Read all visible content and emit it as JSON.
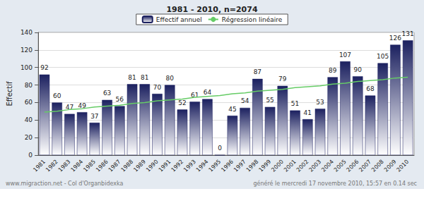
{
  "chart_data": {
    "type": "bar",
    "title": "1981 - 2010, n=2074",
    "y_label": "Effectif",
    "categories": [
      "1981",
      "1982",
      "1983",
      "1984",
      "1985",
      "1986",
      "1987",
      "1988",
      "1989",
      "1990",
      "1991",
      "1992",
      "1993",
      "1994",
      "1995",
      "1996",
      "1997",
      "1998",
      "1999",
      "2000",
      "2001",
      "2002",
      "2003",
      "2004",
      "2005",
      "2006",
      "2007",
      "2008",
      "2009",
      "2010"
    ],
    "series": [
      {
        "name": "Effectif annuel",
        "type": "bar",
        "color": "#1c2160",
        "values": [
          92,
          60,
          47,
          49,
          37,
          63,
          56,
          81,
          81,
          70,
          80,
          52,
          61,
          64,
          0,
          45,
          54,
          87,
          55,
          79,
          51,
          41,
          53,
          89,
          107,
          90,
          68,
          105,
          126,
          131
        ]
      },
      {
        "name": "Régression linéaire",
        "type": "line",
        "color": "#66cc66",
        "line_style": "solid",
        "values": [
          49,
          50,
          52,
          53,
          55,
          56,
          57,
          59,
          60,
          62,
          63,
          64,
          66,
          67,
          68,
          70,
          71,
          73,
          74,
          75,
          77,
          78,
          79,
          81,
          82,
          84,
          85,
          86,
          88,
          89
        ]
      }
    ],
    "ylim": [
      0,
      140
    ],
    "yticks": [
      0,
      20,
      40,
      60,
      80,
      100,
      120,
      140
    ],
    "grid": true,
    "legend": "top",
    "data_labels": true,
    "annotations": [
      "www.migraction.net - Col d'Organbidexka",
      "généré le mercredi 17 novembre 2010, 15:57 en 0.14 sec"
    ]
  }
}
